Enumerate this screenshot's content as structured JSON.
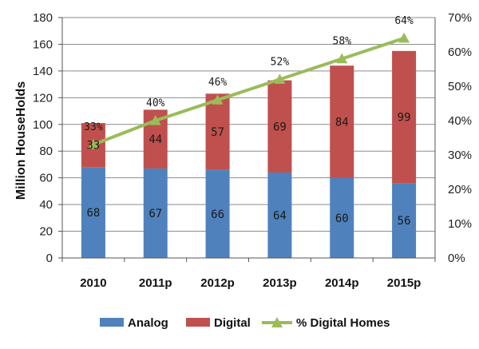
{
  "chart_data": {
    "type": "bar",
    "subtype": "stacked-bar-with-line",
    "categories": [
      "2010",
      "2011p",
      "2012p",
      "2013p",
      "2014p",
      "2015p"
    ],
    "series": [
      {
        "name": "Analog",
        "values": [
          68,
          67,
          66,
          64,
          60,
          56
        ],
        "color": "#4f81bd",
        "axis": "left"
      },
      {
        "name": "Digital",
        "values": [
          33,
          44,
          57,
          69,
          84,
          99
        ],
        "color": "#c0504d",
        "axis": "left"
      },
      {
        "name": "% Digital Homes",
        "values": [
          33,
          40,
          46,
          52,
          58,
          64
        ],
        "color": "#9bbb59",
        "axis": "right",
        "kind": "line"
      }
    ],
    "pct_labels": [
      "33%",
      "40%",
      "46%",
      "52%",
      "58%",
      "64%"
    ],
    "ylabel": "Million HouseHolds",
    "ylim": [
      0,
      180
    ],
    "yticks": [
      0,
      20,
      40,
      60,
      80,
      100,
      120,
      140,
      160,
      180
    ],
    "y2lim": [
      0,
      70
    ],
    "y2ticks": [
      "0%",
      "10%",
      "20%",
      "30%",
      "40%",
      "50%",
      "60%",
      "70%"
    ],
    "grid": "horizontal",
    "legend_position": "bottom"
  }
}
